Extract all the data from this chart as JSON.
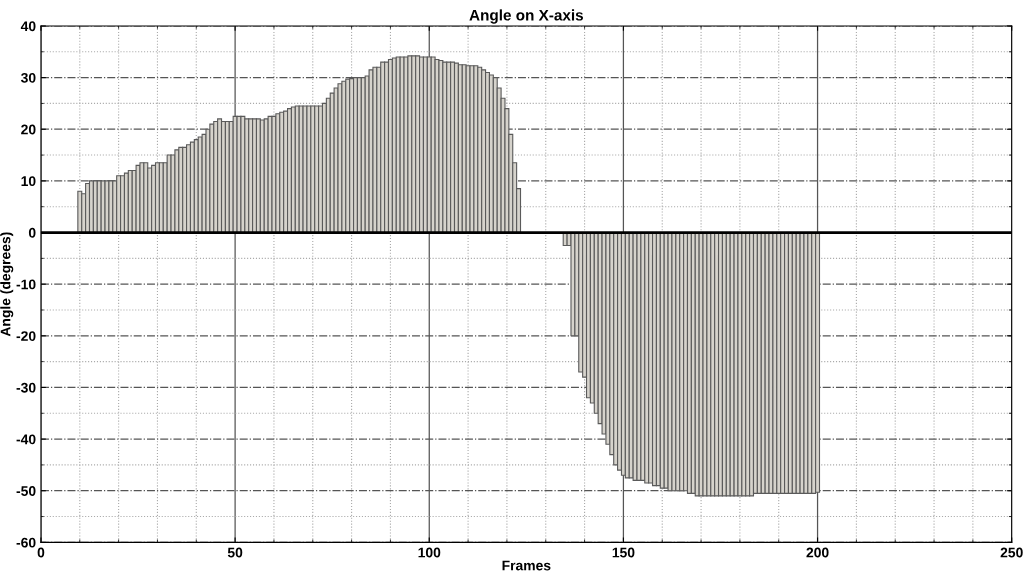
{
  "chart_data": {
    "type": "bar",
    "title": "Angle on X-axis",
    "xlabel": "Frames",
    "ylabel": "Angle (degrees)",
    "x": [
      10,
      11,
      12,
      13,
      14,
      15,
      16,
      17,
      18,
      19,
      20,
      21,
      22,
      23,
      24,
      25,
      26,
      27,
      28,
      29,
      30,
      31,
      32,
      33,
      34,
      35,
      36,
      37,
      38,
      39,
      40,
      41,
      42,
      43,
      44,
      45,
      46,
      47,
      48,
      49,
      50,
      51,
      52,
      53,
      54,
      55,
      56,
      57,
      58,
      59,
      60,
      61,
      62,
      63,
      64,
      65,
      66,
      67,
      68,
      69,
      70,
      71,
      72,
      73,
      74,
      75,
      76,
      77,
      78,
      79,
      80,
      81,
      82,
      83,
      84,
      85,
      86,
      87,
      88,
      89,
      90,
      91,
      92,
      93,
      94,
      95,
      96,
      97,
      98,
      99,
      100,
      101,
      102,
      103,
      104,
      105,
      106,
      107,
      108,
      109,
      110,
      111,
      112,
      113,
      114,
      115,
      116,
      117,
      118,
      119,
      120,
      121,
      122,
      123,
      135,
      136,
      137,
      138,
      139,
      140,
      141,
      142,
      143,
      144,
      145,
      146,
      147,
      148,
      149,
      150,
      151,
      152,
      153,
      154,
      155,
      156,
      157,
      158,
      159,
      160,
      161,
      162,
      163,
      164,
      165,
      166,
      167,
      168,
      169,
      170,
      171,
      172,
      173,
      174,
      175,
      176,
      177,
      178,
      179,
      180,
      181,
      182,
      183,
      184,
      185,
      186,
      187,
      188,
      189,
      190,
      191,
      192,
      193,
      194,
      195,
      196,
      197,
      198,
      199,
      200
    ],
    "values": [
      8,
      7.5,
      9.5,
      10,
      10,
      10,
      10,
      10,
      10,
      10,
      11,
      11,
      11.5,
      12,
      12,
      13,
      13.5,
      13.5,
      12.5,
      13,
      13.5,
      13.5,
      13.5,
      15,
      15,
      16,
      16.5,
      16.5,
      17,
      17.5,
      18,
      18.5,
      19,
      20,
      21,
      21.5,
      22,
      21.5,
      21.5,
      21.5,
      22.5,
      22.5,
      22.5,
      22,
      22,
      22,
      22,
      21.8,
      22,
      22.5,
      22.5,
      23,
      23.3,
      23.5,
      24,
      24.3,
      24.5,
      24.5,
      24.5,
      24.5,
      24.5,
      24.5,
      24.5,
      25,
      26,
      27,
      28,
      28.8,
      29.3,
      29.7,
      29.8,
      30,
      30,
      30,
      30.3,
      31.5,
      32,
      32,
      33,
      33,
      33.5,
      33.8,
      34,
      34,
      34,
      34.2,
      34.2,
      34.2,
      34,
      34,
      34,
      34,
      33.5,
      33.3,
      33,
      33,
      33,
      32.8,
      32.5,
      32.5,
      32.3,
      32.3,
      32.3,
      32,
      31.5,
      31,
      30.5,
      30,
      28,
      26,
      24,
      19,
      13.5,
      8.5,
      -2.5,
      -2.5,
      -20,
      -20,
      -27,
      -28,
      -32,
      -33,
      -35,
      -37,
      -39,
      -41,
      -43,
      -45,
      -46,
      -47,
      -47.5,
      -47.5,
      -48,
      -48,
      -48,
      -48.5,
      -48.5,
      -49,
      -49,
      -49.5,
      -49.5,
      -50,
      -50,
      -50,
      -50,
      -50,
      -50.5,
      -50.5,
      -51,
      -51,
      -51,
      -51,
      -51,
      -51,
      -51,
      -51,
      -51,
      -51,
      -51,
      -51,
      -51,
      -51,
      -51,
      -50.5,
      -50.5,
      -50.5,
      -50.5,
      -50.5,
      -50.5,
      -50.5,
      -50.5,
      -50.5,
      -50.5,
      -50.5,
      -50.5,
      -50.5,
      -50.5,
      -50.5,
      -50.5,
      -50.3
    ],
    "color": "#d6d3cc",
    "xlim": [
      0,
      250
    ],
    "xticks": [
      0,
      50,
      100,
      150,
      200,
      250
    ],
    "ylim": [
      -60,
      40
    ],
    "yticks": [
      -60,
      -50,
      -40,
      -30,
      -20,
      -10,
      0,
      10,
      20,
      30,
      40
    ],
    "ref_lines": [
      {
        "axis": "y",
        "value": 0,
        "color": "#000000"
      }
    ],
    "grid": true
  }
}
